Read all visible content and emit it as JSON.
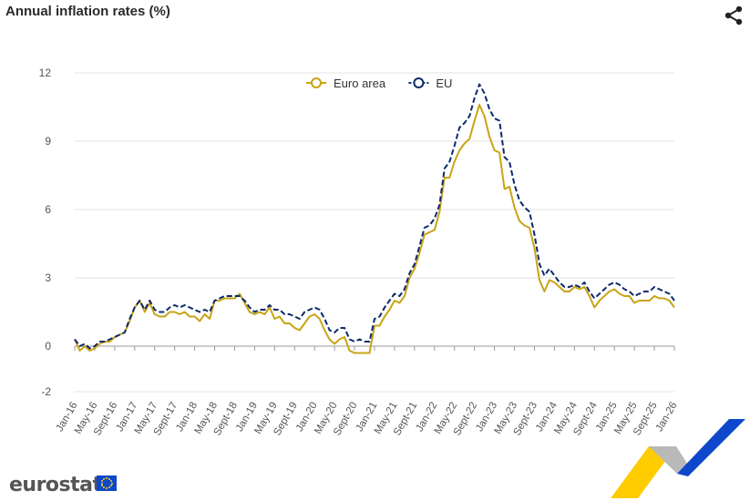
{
  "header": {
    "title": "Annual inflation rates (%)"
  },
  "icons": {
    "share": "share-icon"
  },
  "branding": {
    "logo_text": "eurostat",
    "colors": {
      "yellow": "#ffcc00",
      "blue": "#0e47cb",
      "grey": "#b9b9b9"
    }
  },
  "chart_data": {
    "type": "line",
    "title": "Annual inflation rates (%)",
    "ylim": [
      -2,
      12
    ],
    "yticks": [
      -2,
      0,
      3,
      6,
      9,
      12
    ],
    "xtick_labels": [
      "Jan-16",
      "May-16",
      "Sept-16",
      "Jan-17",
      "May-17",
      "Sept-17",
      "Jan-18",
      "May-18",
      "Sept-18",
      "Jan-19",
      "May-19",
      "Sept-19",
      "Jan-20",
      "May-20",
      "Sept-20",
      "Jan-21",
      "May-21",
      "Sept-21",
      "Jan-22",
      "May-22",
      "Sept-22",
      "Jan-23",
      "May-23",
      "Sept-23",
      "Jan-24",
      "May-24",
      "Sept-24",
      "Jan-25",
      "May-25",
      "Sept-25",
      "Jan-26"
    ],
    "x_start": "Jan-16",
    "n_months": 121,
    "legend_position": "top-center",
    "grid": true,
    "series": [
      {
        "name": "Euro area",
        "color": "#c8a415",
        "style": "solid",
        "values": [
          0.3,
          -0.2,
          0.0,
          -0.2,
          -0.1,
          0.1,
          0.2,
          0.2,
          0.4,
          0.5,
          0.6,
          1.1,
          1.7,
          2.0,
          1.5,
          1.9,
          1.4,
          1.3,
          1.3,
          1.5,
          1.5,
          1.4,
          1.5,
          1.3,
          1.3,
          1.1,
          1.4,
          1.2,
          2.0,
          2.0,
          2.1,
          2.1,
          2.1,
          2.3,
          1.9,
          1.5,
          1.4,
          1.5,
          1.4,
          1.7,
          1.2,
          1.3,
          1.0,
          1.0,
          0.8,
          0.7,
          1.0,
          1.3,
          1.4,
          1.2,
          0.7,
          0.3,
          0.1,
          0.3,
          0.4,
          -0.2,
          -0.3,
          -0.3,
          -0.3,
          -0.3,
          0.9,
          0.9,
          1.3,
          1.6,
          2.0,
          1.9,
          2.2,
          3.0,
          3.4,
          4.1,
          4.9,
          5.0,
          5.1,
          5.9,
          7.4,
          7.4,
          8.1,
          8.6,
          8.9,
          9.1,
          9.9,
          10.6,
          10.1,
          9.2,
          8.6,
          8.5,
          6.9,
          7.0,
          6.1,
          5.5,
          5.3,
          5.2,
          4.3,
          2.9,
          2.4,
          2.9,
          2.8,
          2.6,
          2.4,
          2.4,
          2.6,
          2.5,
          2.6,
          2.2,
          1.7,
          2.0,
          2.2,
          2.4,
          2.5,
          2.3,
          2.2,
          2.2,
          1.9,
          2.0,
          2.0,
          2.0,
          2.2,
          2.1,
          2.1,
          2.0,
          1.7
        ]
      },
      {
        "name": "EU",
        "color": "#0e2a6b",
        "style": "dashed",
        "values": [
          0.3,
          0.0,
          0.1,
          -0.1,
          0.0,
          0.2,
          0.2,
          0.3,
          0.4,
          0.5,
          0.6,
          1.2,
          1.7,
          2.0,
          1.6,
          2.0,
          1.6,
          1.5,
          1.5,
          1.7,
          1.8,
          1.7,
          1.8,
          1.7,
          1.6,
          1.5,
          1.6,
          1.5,
          2.0,
          2.1,
          2.2,
          2.2,
          2.2,
          2.2,
          2.0,
          1.7,
          1.5,
          1.6,
          1.6,
          1.8,
          1.6,
          1.6,
          1.4,
          1.4,
          1.3,
          1.2,
          1.5,
          1.6,
          1.7,
          1.6,
          1.2,
          0.7,
          0.6,
          0.8,
          0.8,
          0.3,
          0.2,
          0.3,
          0.2,
          0.2,
          1.2,
          1.3,
          1.7,
          2.0,
          2.3,
          2.2,
          2.5,
          3.2,
          3.6,
          4.4,
          5.2,
          5.3,
          5.6,
          6.2,
          7.8,
          8.1,
          8.8,
          9.6,
          9.8,
          10.1,
          10.9,
          11.5,
          11.1,
          10.4,
          10.0,
          9.9,
          8.3,
          8.1,
          7.1,
          6.4,
          6.1,
          5.9,
          4.9,
          3.6,
          3.1,
          3.4,
          3.1,
          2.8,
          2.6,
          2.6,
          2.7,
          2.6,
          2.8,
          2.4,
          2.1,
          2.3,
          2.5,
          2.7,
          2.8,
          2.7,
          2.5,
          2.4,
          2.2,
          2.3,
          2.4,
          2.4,
          2.6,
          2.5,
          2.4,
          2.3,
          2.0
        ]
      }
    ]
  }
}
